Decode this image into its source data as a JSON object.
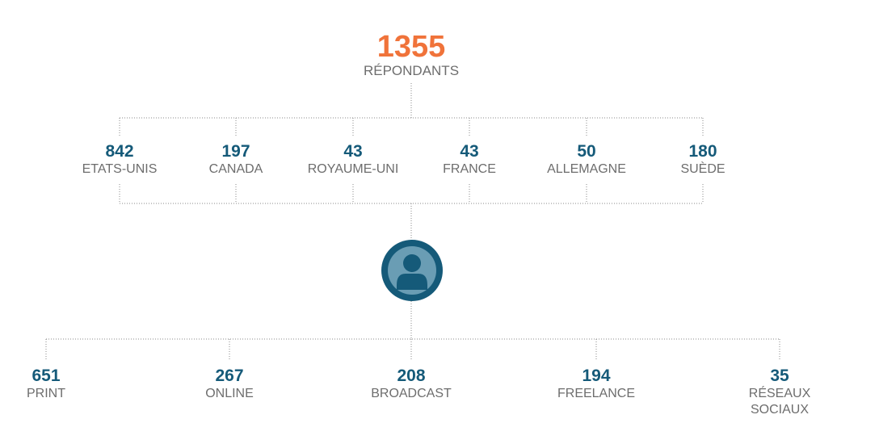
{
  "root": {
    "value": "1355",
    "label": "RÉPONDANTS"
  },
  "countries": [
    {
      "value": "842",
      "label": "ETATS-UNIS"
    },
    {
      "value": "197",
      "label": "CANADA"
    },
    {
      "value": "43",
      "label": "ROYAUME-UNI"
    },
    {
      "value": "43",
      "label": "FRANCE"
    },
    {
      "value": "50",
      "label": "ALLEMAGNE"
    },
    {
      "value": "180",
      "label": "SUÈDE"
    }
  ],
  "sectors": [
    {
      "value": "651",
      "label": "PRINT"
    },
    {
      "value": "267",
      "label": "ONLINE"
    },
    {
      "value": "208",
      "label": "BROADCAST"
    },
    {
      "value": "194",
      "label": "FREELANCE"
    },
    {
      "value": "35",
      "label": "RÉSEAUX\nSOCIAUX"
    }
  ],
  "colors": {
    "accent": "#f0733a",
    "primary": "#155a79",
    "text": "#6d6d6d",
    "connector": "#8a8a8a"
  },
  "icon": "user-avatar-icon"
}
